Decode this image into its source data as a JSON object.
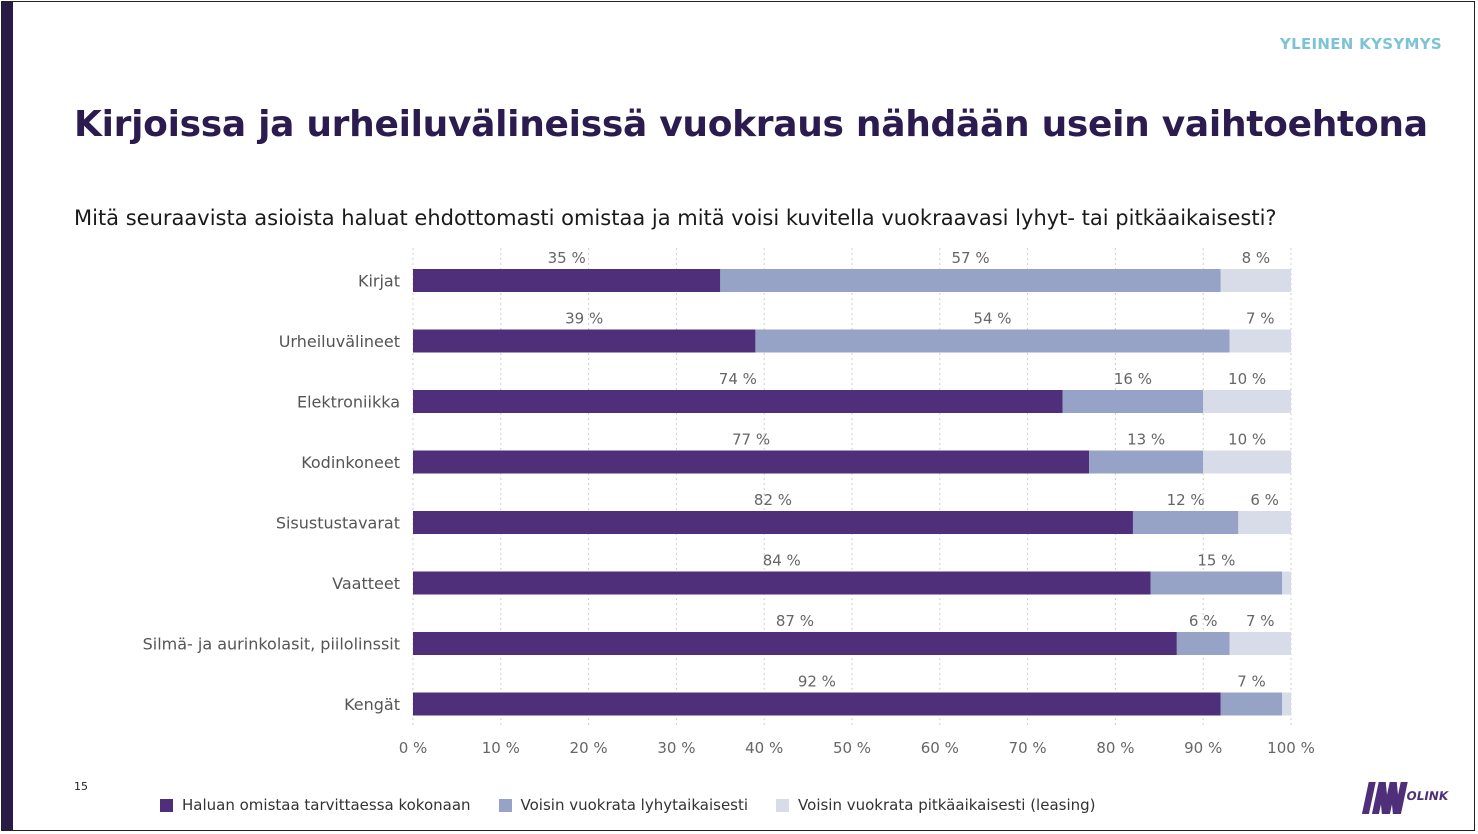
{
  "header": {
    "section_tag": "YLEINEN KYSYMYS",
    "title": "Kirjoissa ja urheiluvälineissä vuokraus nähdään usein vaihtoehtona",
    "question": "Mitä seuraavista asioista haluat ehdottomasti omistaa ja mitä voisi kuvitella vuokraavasi lyhyt- tai pitkäaikaisesti?"
  },
  "footer": {
    "page_number": "15",
    "logo_text": "INNOLINK"
  },
  "chart_data": {
    "type": "bar",
    "orientation": "horizontal",
    "stacked": true,
    "categories": [
      "Kirjat",
      "Urheiluvälineet",
      "Elektroniikka",
      "Kodinkoneet",
      "Sisustustavarat",
      "Vaatteet",
      "Silmä- ja aurinkolasit, piilolinssit",
      "Kengät"
    ],
    "series": [
      {
        "name": "Haluan omistaa tarvittaessa kokonaan",
        "color": "#4f2f7a",
        "values": [
          35,
          39,
          74,
          77,
          82,
          84,
          87,
          92
        ]
      },
      {
        "name": "Voisin vuokrata lyhytaikaisesti",
        "color": "#97a2c7",
        "values": [
          57,
          54,
          16,
          13,
          12,
          15,
          6,
          7
        ]
      },
      {
        "name": "Voisin vuokrata pitkäaikaisesti (leasing)",
        "color": "#d8dce9",
        "values": [
          8,
          7,
          10,
          10,
          6,
          1,
          7,
          1
        ]
      }
    ],
    "data_labels": [
      [
        "35 %",
        "39 %",
        "74 %",
        "77 %",
        "82 %",
        "84 %",
        "87 %",
        "92 %"
      ],
      [
        "57 %",
        "54 %",
        "16 %",
        "13 %",
        "12 %",
        "15 %",
        "6 %",
        "7 %"
      ],
      [
        "8 %",
        "7 %",
        "10 %",
        "10 %",
        "6 %",
        "",
        "7 %",
        ""
      ]
    ],
    "x_ticks": [
      "0 %",
      "10 %",
      "20 %",
      "30 %",
      "40 %",
      "50 %",
      "60 %",
      "70 %",
      "80 %",
      "90 %",
      "100 %"
    ],
    "xlim": [
      0,
      100
    ],
    "grid": "vertical dotted",
    "legend_position": "bottom"
  }
}
